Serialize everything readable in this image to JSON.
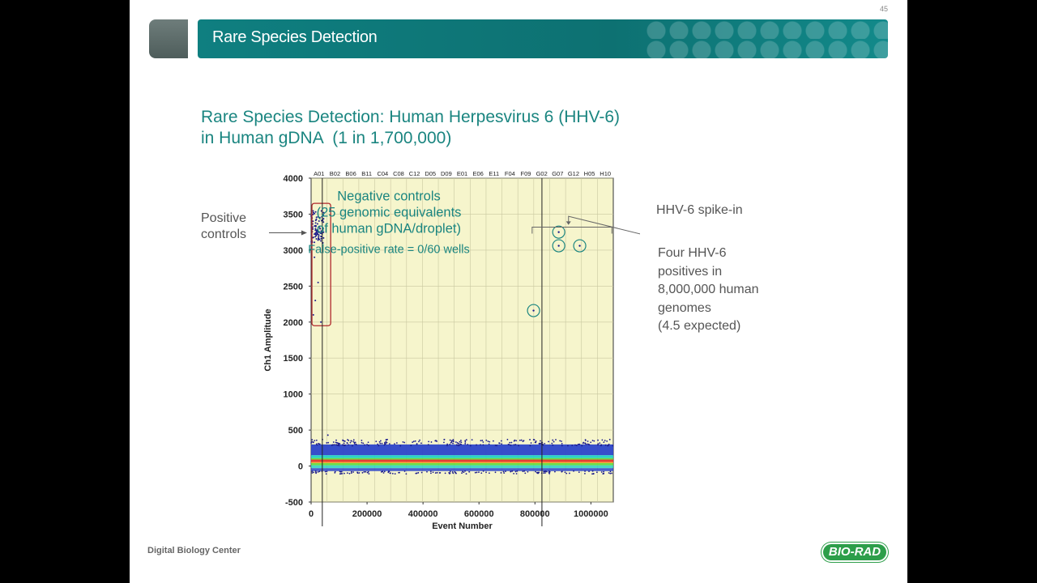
{
  "slide": {
    "page_number": "45",
    "title": "Rare Species Detection",
    "subtitle": "Rare Species Detection: Human Herpesvirus 6 (HHV-6)\nin Human gDNA  (1 in 1,700,000)",
    "footer": "Digital Biology Center",
    "logo": "BIO-RAD",
    "labels": {
      "positive_controls": "Positive\ncontrols",
      "hhv6_spike": "HHV-6 spike-in",
      "four_positives": "Four HHV-6\npositives in\n8,000,000 human\ngenomes\n(4.5 expected)"
    }
  },
  "chart_data": {
    "type": "scatter",
    "title": "",
    "xlabel": "Event Number",
    "ylabel": "Ch1 Amplitude",
    "xlim": [
      0,
      1080000
    ],
    "ylim": [
      -500,
      4000
    ],
    "x_ticks": [
      "0",
      "200000",
      "400000",
      "600000",
      "800000",
      "1000000"
    ],
    "x_tick_values": [
      0,
      200000,
      400000,
      600000,
      800000,
      1000000
    ],
    "y_ticks": [
      "-500",
      "0",
      "500",
      "1000",
      "1500",
      "2000",
      "2500",
      "3000",
      "3500",
      "4000"
    ],
    "y_tick_values": [
      -500,
      0,
      500,
      1000,
      1500,
      2000,
      2500,
      3000,
      3500,
      4000
    ],
    "well_labels": [
      "A01",
      "B02",
      "B06",
      "B11",
      "C04",
      "C08",
      "C12",
      "D05",
      "D09",
      "E01",
      "E06",
      "E11",
      "F04",
      "F09",
      "G02",
      "G07",
      "G12",
      "H05",
      "H10"
    ],
    "negative_band": {
      "x_range": [
        0,
        1080000
      ],
      "y_center": 100,
      "y_spread": 180
    },
    "positive_control_cluster": {
      "x_range": [
        0,
        45000
      ],
      "y_range": [
        3100,
        3550
      ]
    },
    "highlighted_positives": [
      {
        "x": 885000,
        "y": 3250
      },
      {
        "x": 885000,
        "y": 3060
      },
      {
        "x": 960000,
        "y": 3060
      },
      {
        "x": 795000,
        "y": 2160
      }
    ],
    "separator_x": [
      40000,
      825000
    ],
    "annotation": {
      "title": "Negative controls",
      "detail": "(25 genomic equivalents\nof human gDNA/droplet)",
      "rate": "False-positive rate = 0/60 wells"
    },
    "colors": {
      "plot_bg": "#f6f5cc",
      "grid": "#c9c8a0",
      "positive": "#1b1b8c",
      "band_outer": "#2c44c9",
      "band_mid": "#1fd1c7",
      "band_core": "#e7342a",
      "band_green": "#5ddc3a",
      "accent": "#1a8580",
      "box": "#b0282c"
    }
  }
}
